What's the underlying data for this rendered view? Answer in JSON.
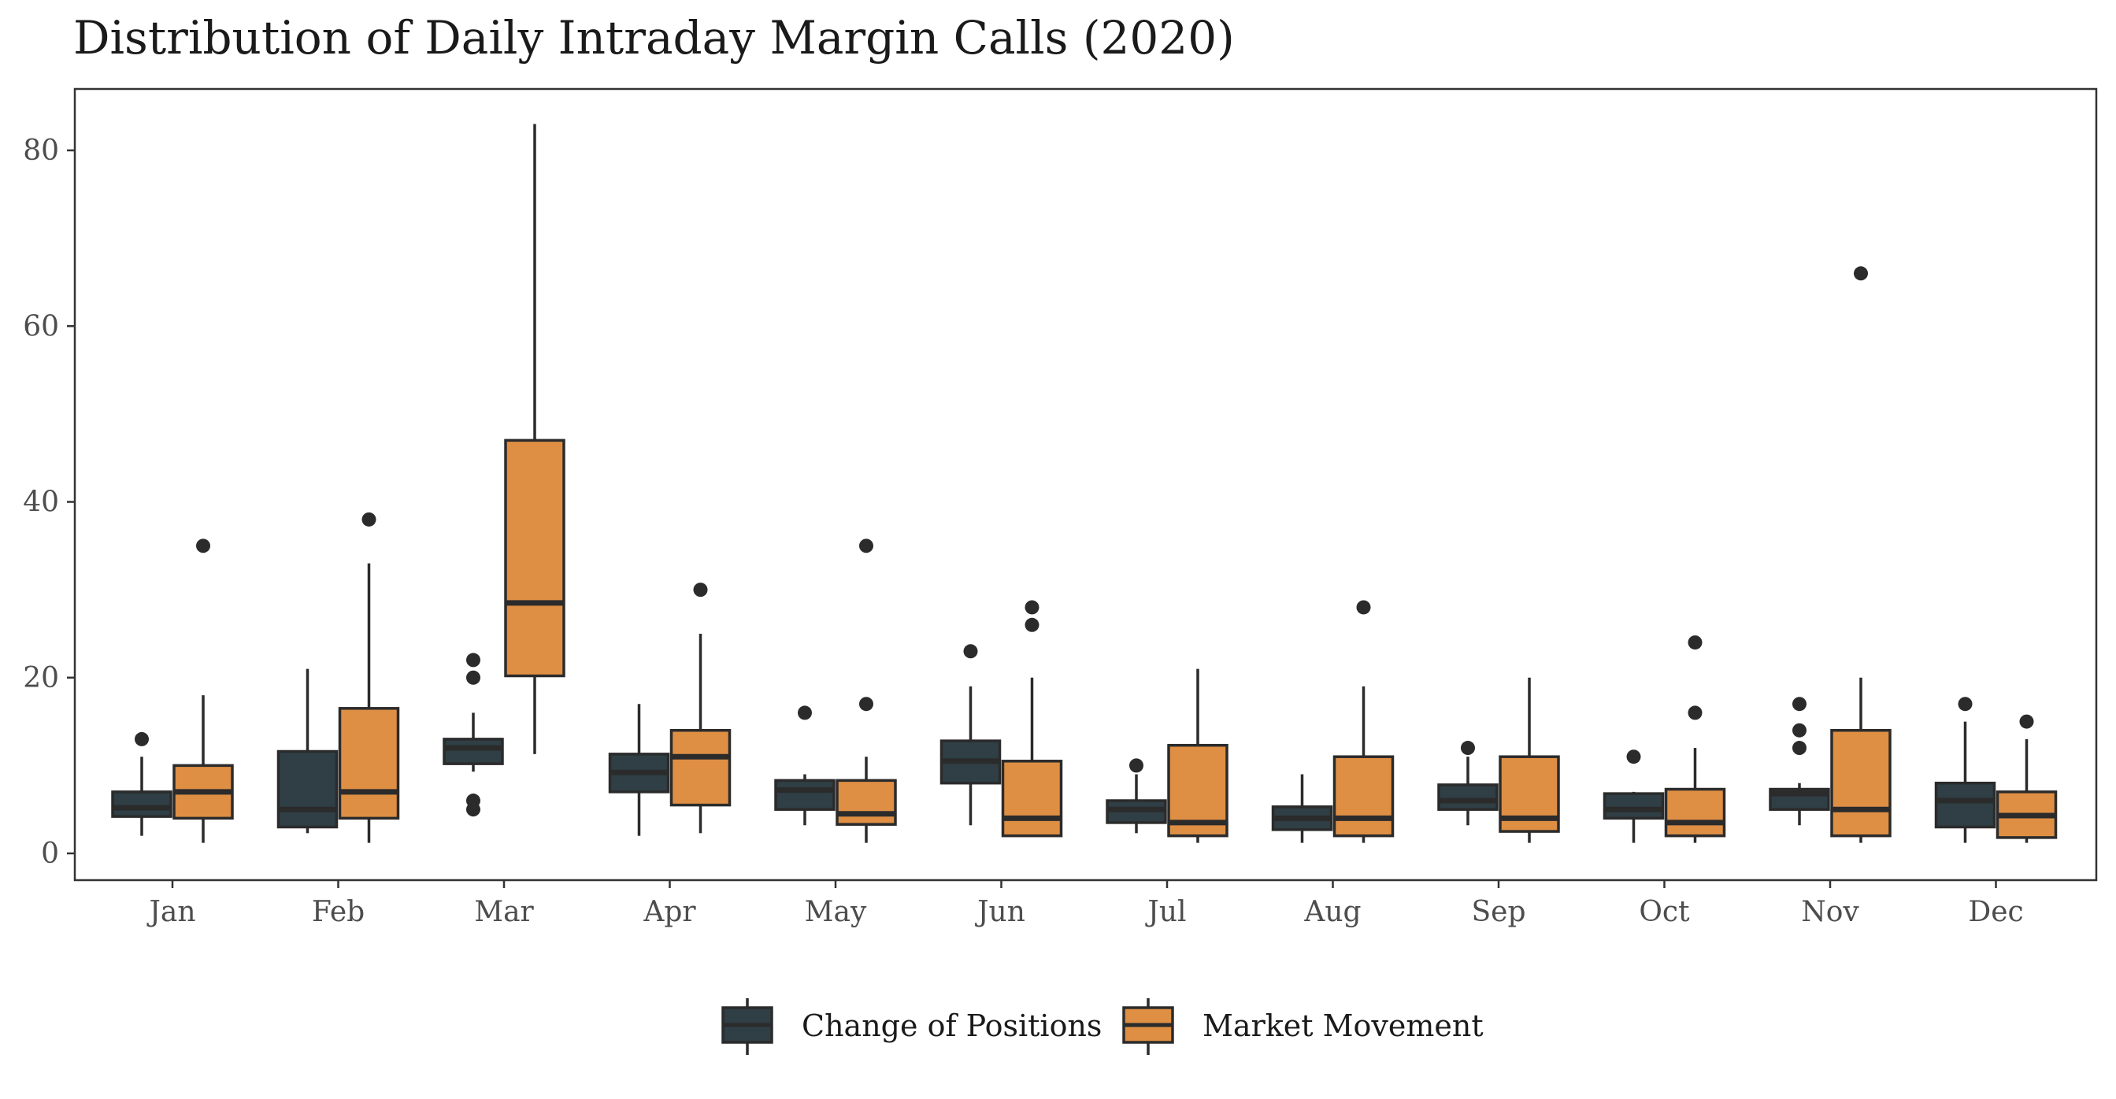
{
  "chart_data": {
    "type": "boxplot",
    "title": "Distribution of Daily Intraday Margin Calls (2020)",
    "xlabel": "",
    "ylabel": "",
    "ylim": [
      -3,
      87
    ],
    "yticks": [
      0,
      20,
      40,
      60,
      80
    ],
    "grid": false,
    "legend_position": "bottom",
    "categories": [
      "Jan",
      "Feb",
      "Mar",
      "Apr",
      "May",
      "Jun",
      "Jul",
      "Aug",
      "Sep",
      "Oct",
      "Nov",
      "Dec"
    ],
    "series": [
      {
        "name": "Change of Positions",
        "color": "#2f3f45",
        "boxes": [
          {
            "whisker_low": 2,
            "q1": 4.2,
            "median": 5.2,
            "q3": 7,
            "whisker_high": 11,
            "outliers": [
              13
            ]
          },
          {
            "whisker_low": 2.3,
            "q1": 3,
            "median": 5,
            "q3": 11.6,
            "whisker_high": 21,
            "outliers": []
          },
          {
            "whisker_low": 9.3,
            "q1": 10.2,
            "median": 12,
            "q3": 13,
            "whisker_high": 16,
            "outliers": [
              22,
              20,
              6,
              5
            ]
          },
          {
            "whisker_low": 2,
            "q1": 7,
            "median": 9.2,
            "q3": 11.3,
            "whisker_high": 17,
            "outliers": []
          },
          {
            "whisker_low": 3.2,
            "q1": 5,
            "median": 7.2,
            "q3": 8.3,
            "whisker_high": 9,
            "outliers": [
              16
            ]
          },
          {
            "whisker_low": 3.2,
            "q1": 8,
            "median": 10.5,
            "q3": 12.8,
            "whisker_high": 19,
            "outliers": [
              23
            ]
          },
          {
            "whisker_low": 2.3,
            "q1": 3.5,
            "median": 5,
            "q3": 6,
            "whisker_high": 9,
            "outliers": [
              10
            ]
          },
          {
            "whisker_low": 1.2,
            "q1": 2.7,
            "median": 4,
            "q3": 5.3,
            "whisker_high": 9,
            "outliers": []
          },
          {
            "whisker_low": 3.2,
            "q1": 5,
            "median": 6,
            "q3": 7.8,
            "whisker_high": 11,
            "outliers": [
              12
            ]
          },
          {
            "whisker_low": 1.2,
            "q1": 4,
            "median": 5,
            "q3": 6.8,
            "whisker_high": 7,
            "outliers": [
              11
            ]
          },
          {
            "whisker_low": 3.2,
            "q1": 5,
            "median": 6.8,
            "q3": 7.3,
            "whisker_high": 8,
            "outliers": [
              17,
              14,
              12
            ]
          },
          {
            "whisker_low": 1.2,
            "q1": 3,
            "median": 6,
            "q3": 8,
            "whisker_high": 15,
            "outliers": [
              17
            ]
          }
        ]
      },
      {
        "name": "Market Movement",
        "color": "#de8f44",
        "boxes": [
          {
            "whisker_low": 1.2,
            "q1": 4,
            "median": 7,
            "q3": 10,
            "whisker_high": 18,
            "outliers": [
              35
            ]
          },
          {
            "whisker_low": 1.2,
            "q1": 4,
            "median": 7,
            "q3": 16.5,
            "whisker_high": 33,
            "outliers": [
              38
            ]
          },
          {
            "whisker_low": 11.3,
            "q1": 20.2,
            "median": 28.5,
            "q3": 47,
            "whisker_high": 83,
            "outliers": []
          },
          {
            "whisker_low": 2.3,
            "q1": 5.5,
            "median": 11,
            "q3": 14,
            "whisker_high": 25,
            "outliers": [
              30
            ]
          },
          {
            "whisker_low": 1.2,
            "q1": 3.3,
            "median": 4.5,
            "q3": 8.3,
            "whisker_high": 11,
            "outliers": [
              35,
              17
            ]
          },
          {
            "whisker_low": 2,
            "q1": 2,
            "median": 4,
            "q3": 10.5,
            "whisker_high": 20,
            "outliers": [
              28,
              26
            ]
          },
          {
            "whisker_low": 1.2,
            "q1": 2,
            "median": 3.5,
            "q3": 12.3,
            "whisker_high": 21,
            "outliers": []
          },
          {
            "whisker_low": 1.2,
            "q1": 2,
            "median": 4,
            "q3": 11,
            "whisker_high": 19,
            "outliers": [
              28
            ]
          },
          {
            "whisker_low": 1.2,
            "q1": 2.5,
            "median": 4,
            "q3": 11,
            "whisker_high": 20,
            "outliers": []
          },
          {
            "whisker_low": 1.2,
            "q1": 2,
            "median": 3.5,
            "q3": 7.3,
            "whisker_high": 12,
            "outliers": [
              24,
              16
            ]
          },
          {
            "whisker_low": 1.2,
            "q1": 2,
            "median": 5,
            "q3": 14,
            "whisker_high": 20,
            "outliers": [
              66
            ]
          },
          {
            "whisker_low": 1.2,
            "q1": 1.8,
            "median": 4.3,
            "q3": 7,
            "whisker_high": 13,
            "outliers": [
              15
            ]
          }
        ]
      }
    ]
  }
}
